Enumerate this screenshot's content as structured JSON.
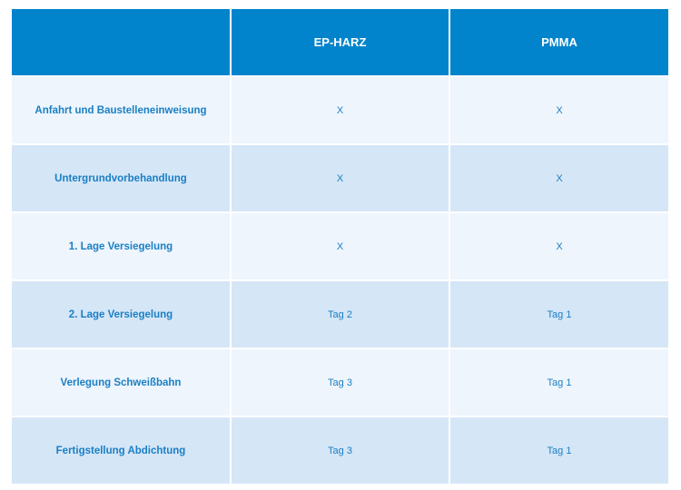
{
  "table": {
    "columns": [
      "",
      "EP-HARZ",
      "PMMA"
    ],
    "rows": [
      {
        "label": "Anfahrt und Baustelleneinweisung",
        "ep_harz": "X",
        "pmma": "X"
      },
      {
        "label": "Untergrundvorbehandlung",
        "ep_harz": "X",
        "pmma": "X"
      },
      {
        "label": "1. Lage Versiegelung",
        "ep_harz": "X",
        "pmma": "X"
      },
      {
        "label": "2. Lage Versiegelung",
        "ep_harz": "Tag 2",
        "pmma": "Tag 1"
      },
      {
        "label": "Verlegung Schweißbahn",
        "ep_harz": "Tag 3",
        "pmma": "Tag 1"
      },
      {
        "label": "Fertigstellung Abdichtung",
        "ep_harz": "Tag 3",
        "pmma": "Tag 1"
      }
    ]
  },
  "colors": {
    "header_bg": "#0184cc",
    "row_light": "#eef5fd",
    "row_dark": "#d5e6f7",
    "text_blue": "#1a7fc4"
  }
}
